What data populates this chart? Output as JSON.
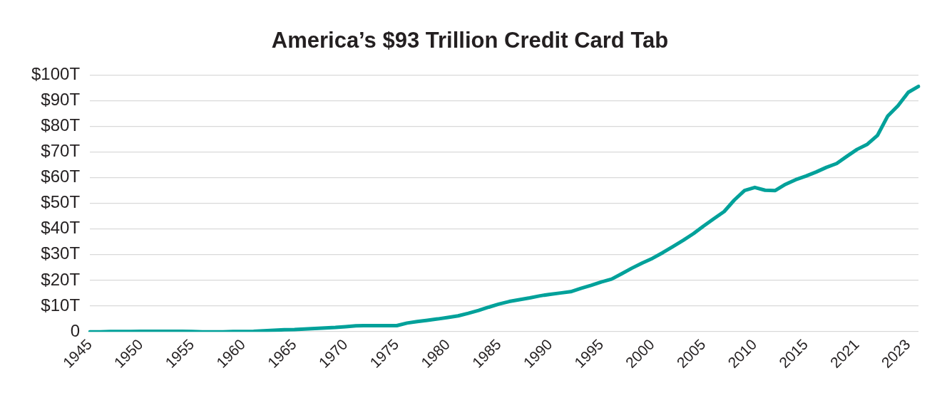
{
  "chart_data": {
    "type": "line",
    "title": "America’s $93 Trillion Credit Card Tab",
    "categories": [
      "1945",
      null,
      null,
      null,
      null,
      "1950",
      null,
      null,
      null,
      null,
      "1955",
      null,
      null,
      null,
      null,
      "1960",
      null,
      null,
      null,
      null,
      "1965",
      null,
      null,
      null,
      null,
      "1970",
      null,
      null,
      null,
      null,
      "1975",
      null,
      null,
      null,
      null,
      "1980",
      null,
      null,
      null,
      null,
      "1985",
      null,
      null,
      null,
      null,
      "1990",
      null,
      null,
      null,
      null,
      "1995",
      null,
      null,
      null,
      null,
      "2000",
      null,
      null,
      null,
      null,
      "2005",
      null,
      null,
      null,
      null,
      "2010",
      null,
      null,
      null,
      null,
      "2015",
      null,
      null,
      null,
      null,
      "2021",
      null,
      null,
      null,
      null,
      "2023",
      null
    ],
    "series": [
      {
        "color": "#00a19a",
        "values": [
          0,
          0,
          0.1,
          0.1,
          0.1,
          0.2,
          0.2,
          0.2,
          0.2,
          0.2,
          0.1,
          0,
          0,
          0,
          0.1,
          0.1,
          0.2,
          0.4,
          0.6,
          0.8,
          0.9,
          1.1,
          1.3,
          1.5,
          1.7,
          2.0,
          2.3,
          2.4,
          2.4,
          2.4,
          2.4,
          3.4,
          4.0,
          4.5,
          5.0,
          5.6,
          6.2,
          7.2,
          8.3,
          9.6,
          10.8,
          11.8,
          12.5,
          13.2,
          14.0,
          14.6,
          15.1,
          15.6,
          16.9,
          18.1,
          19.4,
          20.5,
          22.6,
          24.8,
          26.8,
          28.6,
          30.8,
          33.2,
          35.6,
          38.2,
          41.2,
          44.0,
          46.8,
          51.3,
          55.0,
          56.2,
          55.1,
          55.0,
          57.4,
          59.2,
          60.6,
          62.2,
          64.0,
          65.5,
          68.3,
          71.0,
          73.0,
          76.5,
          84.0,
          88.0,
          93.2,
          95.5
        ]
      }
    ],
    "ylim": [
      0,
      100
    ],
    "yticks": [
      {
        "value": 0,
        "label": "0"
      },
      {
        "value": 10,
        "label": "$10T"
      },
      {
        "value": 20,
        "label": "$20T"
      },
      {
        "value": 30,
        "label": "$30T"
      },
      {
        "value": 40,
        "label": "$40T"
      },
      {
        "value": 50,
        "label": "$50T"
      },
      {
        "value": 60,
        "label": "$60T"
      },
      {
        "value": 70,
        "label": "$70T"
      },
      {
        "value": 80,
        "label": "$80T"
      },
      {
        "value": 90,
        "label": "$90T"
      },
      {
        "value": 100,
        "label": "$100T"
      }
    ],
    "grid": "y",
    "legend": false,
    "marker": "none",
    "line_style": "solid"
  }
}
